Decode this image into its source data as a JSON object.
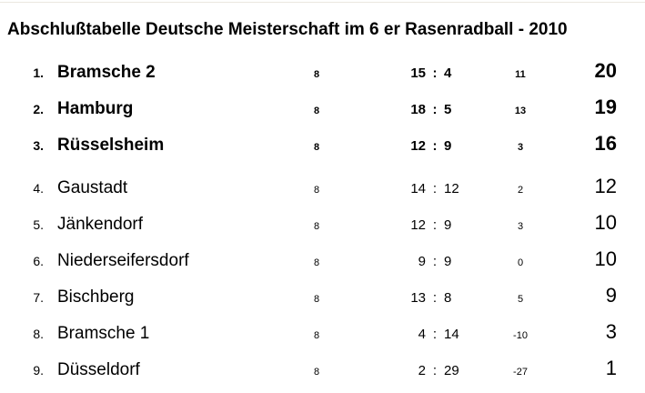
{
  "title": "Abschlußtabelle Deutsche Meisterschaft im 6 er Rasenradball - 2010",
  "goals_separator": ":",
  "table": {
    "rows": [
      {
        "rank": "1.",
        "team": "Bramsche 2",
        "games": "8",
        "goals_for": "15",
        "goals_against": "4",
        "diff": "11",
        "points": "20",
        "emphasis": true
      },
      {
        "rank": "2.",
        "team": "Hamburg",
        "games": "8",
        "goals_for": "18",
        "goals_against": "5",
        "diff": "13",
        "points": "19",
        "emphasis": true
      },
      {
        "rank": "3.",
        "team": "Rüsselsheim",
        "games": "8",
        "goals_for": "12",
        "goals_against": "9",
        "diff": "3",
        "points": "16",
        "emphasis": true
      },
      {
        "rank": "4.",
        "team": "Gaustadt",
        "games": "8",
        "goals_for": "14",
        "goals_against": "12",
        "diff": "2",
        "points": "12",
        "emphasis": false
      },
      {
        "rank": "5.",
        "team": "Jänkendorf",
        "games": "8",
        "goals_for": "12",
        "goals_against": "9",
        "diff": "3",
        "points": "10",
        "emphasis": false
      },
      {
        "rank": "6.",
        "team": "Niederseifersdorf",
        "games": "8",
        "goals_for": "9",
        "goals_against": "9",
        "diff": "0",
        "points": "10",
        "emphasis": false
      },
      {
        "rank": "7.",
        "team": "Bischberg",
        "games": "8",
        "goals_for": "13",
        "goals_against": "8",
        "diff": "5",
        "points": "9",
        "emphasis": false
      },
      {
        "rank": "8.",
        "team": "Bramsche 1",
        "games": "8",
        "goals_for": "4",
        "goals_against": "14",
        "diff": "-10",
        "points": "3",
        "emphasis": false
      },
      {
        "rank": "9.",
        "team": "Düsseldorf",
        "games": "8",
        "goals_for": "2",
        "goals_against": "29",
        "diff": "-27",
        "points": "1",
        "emphasis": false
      }
    ]
  }
}
